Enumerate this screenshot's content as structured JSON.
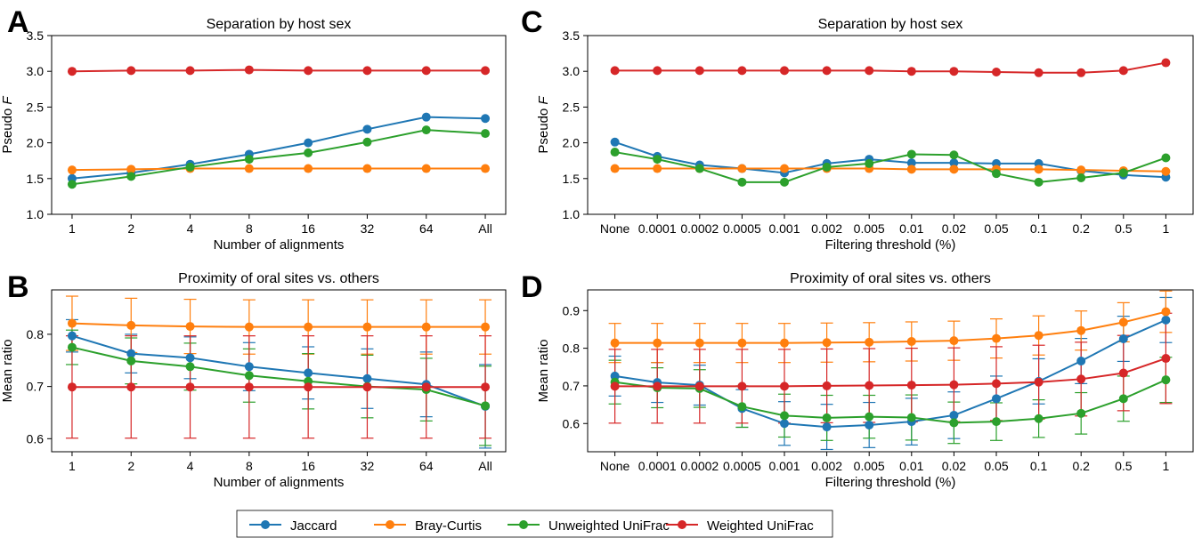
{
  "colors": {
    "Jaccard": "#1f77b4",
    "Bray-Curtis": "#ff7f0e",
    "Unweighted UniFrac": "#2ca02c",
    "Weighted UniFrac": "#d62728"
  },
  "legend": [
    "Jaccard",
    "Bray-Curtis",
    "Unweighted UniFrac",
    "Weighted UniFrac"
  ],
  "chart_data": [
    {
      "panel": "A",
      "type": "line",
      "title": "Separation by host sex",
      "xlabel": "Number of alignments",
      "ylabel_prefix": "Pseudo ",
      "ylabel_italic": "F",
      "categories": [
        "1",
        "2",
        "4",
        "8",
        "16",
        "32",
        "64",
        "All"
      ],
      "ylim": [
        1.0,
        3.5
      ],
      "yticks": [
        "1.0",
        "1.5",
        "2.0",
        "2.5",
        "3.0",
        "3.5"
      ],
      "series": [
        {
          "name": "Jaccard",
          "values": [
            1.5,
            1.58,
            1.7,
            1.84,
            2.0,
            2.19,
            2.36,
            2.34
          ]
        },
        {
          "name": "Bray-Curtis",
          "values": [
            1.62,
            1.63,
            1.64,
            1.64,
            1.64,
            1.64,
            1.64,
            1.64
          ]
        },
        {
          "name": "Unweighted UniFrac",
          "values": [
            1.42,
            1.53,
            1.66,
            1.77,
            1.86,
            2.01,
            2.18,
            2.13
          ]
        },
        {
          "name": "Weighted UniFrac",
          "values": [
            3.0,
            3.01,
            3.01,
            3.02,
            3.01,
            3.01,
            3.01,
            3.01
          ]
        }
      ]
    },
    {
      "panel": "C",
      "type": "line",
      "title": "Separation by host sex",
      "xlabel": "Filtering threshold (%)",
      "ylabel_prefix": "Pseudo ",
      "ylabel_italic": "F",
      "categories": [
        "None",
        "0.0001",
        "0.0002",
        "0.0005",
        "0.001",
        "0.002",
        "0.005",
        "0.01",
        "0.02",
        "0.05",
        "0.1",
        "0.2",
        "0.5",
        "1"
      ],
      "ylim": [
        1.0,
        3.5
      ],
      "yticks": [
        "1.0",
        "1.5",
        "2.0",
        "2.5",
        "3.0",
        "3.5"
      ],
      "series": [
        {
          "name": "Jaccard",
          "values": [
            2.01,
            1.81,
            1.69,
            1.64,
            1.58,
            1.71,
            1.77,
            1.72,
            1.72,
            1.71,
            1.71,
            1.61,
            1.55,
            1.52
          ]
        },
        {
          "name": "Bray-Curtis",
          "values": [
            1.64,
            1.64,
            1.64,
            1.64,
            1.64,
            1.64,
            1.64,
            1.63,
            1.63,
            1.63,
            1.63,
            1.62,
            1.61,
            1.6
          ]
        },
        {
          "name": "Unweighted UniFrac",
          "values": [
            1.87,
            1.77,
            1.64,
            1.45,
            1.45,
            1.66,
            1.71,
            1.84,
            1.83,
            1.57,
            1.45,
            1.51,
            1.58,
            1.79
          ]
        },
        {
          "name": "Weighted UniFrac",
          "values": [
            3.01,
            3.01,
            3.01,
            3.01,
            3.01,
            3.01,
            3.01,
            3.0,
            3.0,
            2.99,
            2.98,
            2.98,
            3.01,
            3.12
          ]
        }
      ]
    },
    {
      "panel": "B",
      "type": "line",
      "title": "Proximity of oral sites vs. others",
      "xlabel": "Number of alignments",
      "ylabel": "Mean ratio",
      "categories": [
        "1",
        "2",
        "4",
        "8",
        "16",
        "32",
        "64",
        "All"
      ],
      "ylim": [
        0.575,
        0.885
      ],
      "yticks": [
        "0.6",
        "0.7",
        "0.8"
      ],
      "series": [
        {
          "name": "Jaccard",
          "values": [
            0.797,
            0.763,
            0.755,
            0.738,
            0.726,
            0.715,
            0.704,
            0.662
          ],
          "errors": [
            0.031,
            0.037,
            0.04,
            0.046,
            0.05,
            0.057,
            0.062,
            0.08
          ]
        },
        {
          "name": "Bray-Curtis",
          "values": [
            0.821,
            0.817,
            0.815,
            0.814,
            0.814,
            0.814,
            0.814,
            0.814
          ],
          "errors": [
            0.052,
            0.052,
            0.052,
            0.052,
            0.052,
            0.052,
            0.052,
            0.052
          ]
        },
        {
          "name": "Unweighted UniFrac",
          "values": [
            0.775,
            0.749,
            0.738,
            0.721,
            0.71,
            0.7,
            0.694,
            0.663
          ],
          "errors": [
            0.033,
            0.044,
            0.045,
            0.051,
            0.053,
            0.06,
            0.06,
            0.076
          ]
        },
        {
          "name": "Weighted UniFrac",
          "values": [
            0.699,
            0.699,
            0.699,
            0.699,
            0.699,
            0.699,
            0.699,
            0.699
          ],
          "errors": [
            0.098,
            0.098,
            0.098,
            0.098,
            0.098,
            0.098,
            0.098,
            0.098
          ]
        }
      ]
    },
    {
      "panel": "D",
      "type": "line",
      "title": "Proximity of oral sites vs. others",
      "xlabel": "Filtering threshold (%)",
      "ylabel": "Mean ratio",
      "categories": [
        "None",
        "0.0001",
        "0.0002",
        "0.0005",
        "0.001",
        "0.002",
        "0.005",
        "0.01",
        "0.02",
        "0.05",
        "0.1",
        "0.2",
        "0.5",
        "1"
      ],
      "ylim": [
        0.525,
        0.955
      ],
      "yticks": [
        "0.6",
        "0.7",
        "0.8",
        "0.9"
      ],
      "series": [
        {
          "name": "Jaccard",
          "values": [
            0.726,
            0.709,
            0.702,
            0.64,
            0.6,
            0.591,
            0.596,
            0.605,
            0.622,
            0.666,
            0.712,
            0.766,
            0.825,
            0.875
          ],
          "errors": [
            0.053,
            0.053,
            0.053,
            0.05,
            0.058,
            0.06,
            0.06,
            0.062,
            0.062,
            0.06,
            0.06,
            0.06,
            0.06,
            0.06
          ]
        },
        {
          "name": "Bray-Curtis",
          "values": [
            0.814,
            0.814,
            0.814,
            0.814,
            0.814,
            0.815,
            0.816,
            0.818,
            0.82,
            0.826,
            0.834,
            0.847,
            0.869,
            0.897
          ],
          "errors": [
            0.052,
            0.052,
            0.052,
            0.052,
            0.052,
            0.052,
            0.052,
            0.052,
            0.052,
            0.052,
            0.052,
            0.052,
            0.052,
            0.055
          ]
        },
        {
          "name": "Unweighted UniFrac",
          "values": [
            0.71,
            0.695,
            0.693,
            0.645,
            0.621,
            0.615,
            0.618,
            0.616,
            0.602,
            0.605,
            0.613,
            0.627,
            0.666,
            0.716
          ],
          "errors": [
            0.058,
            0.053,
            0.05,
            0.055,
            0.057,
            0.06,
            0.057,
            0.06,
            0.055,
            0.05,
            0.05,
            0.055,
            0.06,
            0.06
          ]
        },
        {
          "name": "Weighted UniFrac",
          "values": [
            0.699,
            0.699,
            0.699,
            0.699,
            0.699,
            0.7,
            0.701,
            0.702,
            0.703,
            0.706,
            0.71,
            0.718,
            0.734,
            0.773
          ],
          "errors": [
            0.098,
            0.098,
            0.098,
            0.098,
            0.098,
            0.098,
            0.098,
            0.098,
            0.098,
            0.098,
            0.098,
            0.098,
            0.1,
            0.12
          ]
        }
      ]
    }
  ]
}
